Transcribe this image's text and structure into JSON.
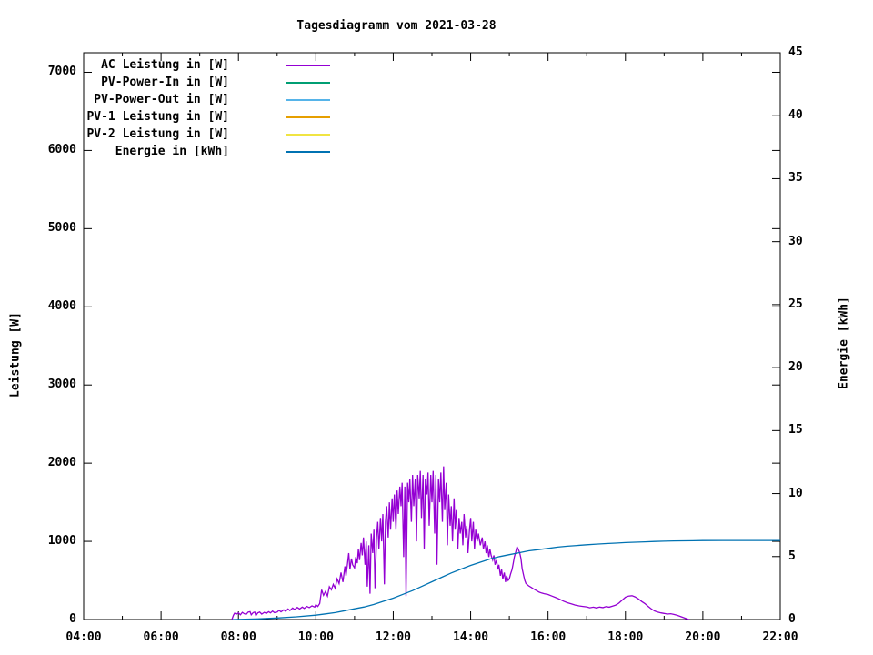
{
  "chart_data": {
    "type": "line",
    "title": "Tagesdiagramm vom 2021-03-28",
    "grid": false,
    "legend_position": "top-left-inside",
    "x_axis": {
      "tick_labels": [
        "04:00",
        "06:00",
        "08:00",
        "10:00",
        "12:00",
        "14:00",
        "16:00",
        "18:00",
        "20:00",
        "22:00"
      ],
      "major_tick_hours": [
        4,
        6,
        8,
        10,
        12,
        14,
        16,
        18,
        20,
        22
      ],
      "minor_tick_hours": [
        5,
        7,
        9,
        11,
        13,
        15,
        17,
        19,
        21
      ],
      "range_hours": [
        4,
        22
      ]
    },
    "y_left": {
      "label": "Leistung [W]",
      "tick_values": [
        0,
        1000,
        2000,
        3000,
        4000,
        5000,
        6000,
        7000
      ],
      "range": [
        0,
        7250
      ]
    },
    "y_right": {
      "label": "Energie [kWh]",
      "tick_values": [
        0,
        5,
        10,
        15,
        20,
        25,
        30,
        35,
        40,
        45
      ],
      "range": [
        0,
        45
      ]
    },
    "series": [
      {
        "name": "AC Leistung in [W]",
        "color": "#9400d3",
        "axis": "left",
        "visible": true,
        "points": [
          [
            7.83,
            0
          ],
          [
            7.87,
            55
          ],
          [
            7.9,
            80
          ],
          [
            7.95,
            70
          ],
          [
            8.0,
            85
          ],
          [
            8.05,
            60
          ],
          [
            8.1,
            92
          ],
          [
            8.15,
            75
          ],
          [
            8.2,
            65
          ],
          [
            8.25,
            95
          ],
          [
            8.3,
            100
          ],
          [
            8.33,
            60
          ],
          [
            8.38,
            88
          ],
          [
            8.42,
            95
          ],
          [
            8.45,
            50
          ],
          [
            8.5,
            85
          ],
          [
            8.55,
            95
          ],
          [
            8.6,
            70
          ],
          [
            8.67,
            92
          ],
          [
            8.72,
            78
          ],
          [
            8.78,
            100
          ],
          [
            8.83,
            85
          ],
          [
            8.88,
            108
          ],
          [
            8.93,
            88
          ],
          [
            9.0,
            95
          ],
          [
            9.05,
            118
          ],
          [
            9.1,
            98
          ],
          [
            9.17,
            125
          ],
          [
            9.22,
            105
          ],
          [
            9.28,
            135
          ],
          [
            9.33,
            115
          ],
          [
            9.4,
            148
          ],
          [
            9.45,
            128
          ],
          [
            9.52,
            155
          ],
          [
            9.58,
            135
          ],
          [
            9.65,
            160
          ],
          [
            9.7,
            142
          ],
          [
            9.77,
            168
          ],
          [
            9.83,
            152
          ],
          [
            9.9,
            175
          ],
          [
            9.97,
            160
          ],
          [
            10.0,
            190
          ],
          [
            10.05,
            168
          ],
          [
            10.1,
            205
          ],
          [
            10.15,
            380
          ],
          [
            10.2,
            310
          ],
          [
            10.25,
            360
          ],
          [
            10.3,
            300
          ],
          [
            10.35,
            420
          ],
          [
            10.4,
            380
          ],
          [
            10.45,
            450
          ],
          [
            10.5,
            400
          ],
          [
            10.55,
            520
          ],
          [
            10.6,
            460
          ],
          [
            10.65,
            600
          ],
          [
            10.7,
            480
          ],
          [
            10.75,
            680
          ],
          [
            10.78,
            560
          ],
          [
            10.82,
            720
          ],
          [
            10.85,
            850
          ],
          [
            10.88,
            640
          ],
          [
            10.92,
            780
          ],
          [
            10.95,
            700
          ],
          [
            11.0,
            660
          ],
          [
            11.03,
            800
          ],
          [
            11.07,
            720
          ],
          [
            11.1,
            900
          ],
          [
            11.13,
            760
          ],
          [
            11.17,
            980
          ],
          [
            11.2,
            820
          ],
          [
            11.23,
            1050
          ],
          [
            11.27,
            700
          ],
          [
            11.3,
            1000
          ],
          [
            11.33,
            420
          ],
          [
            11.37,
            950
          ],
          [
            11.4,
            330
          ],
          [
            11.43,
            1100
          ],
          [
            11.47,
            850
          ],
          [
            11.5,
            1150
          ],
          [
            11.53,
            400
          ],
          [
            11.57,
            1050
          ],
          [
            11.6,
            1250
          ],
          [
            11.63,
            900
          ],
          [
            11.67,
            1300
          ],
          [
            11.7,
            1000
          ],
          [
            11.73,
            1350
          ],
          [
            11.77,
            450
          ],
          [
            11.8,
            1250
          ],
          [
            11.83,
            1450
          ],
          [
            11.87,
            1050
          ],
          [
            11.9,
            1500
          ],
          [
            11.93,
            1150
          ],
          [
            11.97,
            1550
          ],
          [
            12.0,
            1250
          ],
          [
            12.03,
            1600
          ],
          [
            12.07,
            1150
          ],
          [
            12.1,
            1650
          ],
          [
            12.13,
            1350
          ],
          [
            12.17,
            1700
          ],
          [
            12.2,
            1450
          ],
          [
            12.23,
            1750
          ],
          [
            12.27,
            800
          ],
          [
            12.3,
            1700
          ],
          [
            12.33,
            300
          ],
          [
            12.37,
            1750
          ],
          [
            12.4,
            1500
          ],
          [
            12.43,
            1800
          ],
          [
            12.47,
            1250
          ],
          [
            12.5,
            1850
          ],
          [
            12.53,
            1450
          ],
          [
            12.57,
            1800
          ],
          [
            12.6,
            1000
          ],
          [
            12.63,
            1850
          ],
          [
            12.67,
            1550
          ],
          [
            12.7,
            1900
          ],
          [
            12.73,
            1300
          ],
          [
            12.77,
            1850
          ],
          [
            12.8,
            900
          ],
          [
            12.83,
            1800
          ],
          [
            12.87,
            1600
          ],
          [
            12.9,
            1880
          ],
          [
            12.93,
            1200
          ],
          [
            12.97,
            1850
          ],
          [
            13.0,
            1500
          ],
          [
            13.03,
            1900
          ],
          [
            13.07,
            1100
          ],
          [
            13.1,
            1850
          ],
          [
            13.13,
            700
          ],
          [
            13.17,
            1800
          ],
          [
            13.2,
            1500
          ],
          [
            13.23,
            1880
          ],
          [
            13.27,
            1250
          ],
          [
            13.3,
            1960
          ],
          [
            13.33,
            1400
          ],
          [
            13.37,
            1750
          ],
          [
            13.4,
            950
          ],
          [
            13.43,
            1600
          ],
          [
            13.47,
            1200
          ],
          [
            13.5,
            1450
          ],
          [
            13.53,
            1000
          ],
          [
            13.57,
            1550
          ],
          [
            13.6,
            1150
          ],
          [
            13.63,
            1400
          ],
          [
            13.67,
            900
          ],
          [
            13.7,
            1300
          ],
          [
            13.73,
            1100
          ],
          [
            13.77,
            1250
          ],
          [
            13.8,
            950
          ],
          [
            13.83,
            1350
          ],
          [
            13.87,
            1050
          ],
          [
            13.9,
            1200
          ],
          [
            13.93,
            850
          ],
          [
            13.97,
            1150
          ],
          [
            14.0,
            1300
          ],
          [
            14.03,
            1000
          ],
          [
            14.07,
            1250
          ],
          [
            14.1,
            900
          ],
          [
            14.13,
            1150
          ],
          [
            14.17,
            1000
          ],
          [
            14.2,
            1100
          ],
          [
            14.25,
            950
          ],
          [
            14.3,
            1050
          ],
          [
            14.33,
            900
          ],
          [
            14.37,
            1000
          ],
          [
            14.4,
            850
          ],
          [
            14.43,
            950
          ],
          [
            14.47,
            800
          ],
          [
            14.5,
            900
          ],
          [
            14.53,
            820
          ],
          [
            14.57,
            760
          ],
          [
            14.6,
            820
          ],
          [
            14.63,
            700
          ],
          [
            14.67,
            760
          ],
          [
            14.7,
            640
          ],
          [
            14.73,
            700
          ],
          [
            14.77,
            560
          ],
          [
            14.8,
            640
          ],
          [
            14.83,
            520
          ],
          [
            14.87,
            600
          ],
          [
            14.9,
            480
          ],
          [
            14.93,
            560
          ],
          [
            14.97,
            500
          ],
          [
            15.0,
            520
          ],
          [
            15.03,
            580
          ],
          [
            15.07,
            640
          ],
          [
            15.1,
            720
          ],
          [
            15.13,
            800
          ],
          [
            15.17,
            870
          ],
          [
            15.2,
            930
          ],
          [
            15.23,
            900
          ],
          [
            15.27,
            850
          ],
          [
            15.3,
            780
          ],
          [
            15.33,
            650
          ],
          [
            15.37,
            560
          ],
          [
            15.4,
            500
          ],
          [
            15.43,
            460
          ],
          [
            15.5,
            430
          ],
          [
            15.57,
            410
          ],
          [
            15.63,
            390
          ],
          [
            15.7,
            370
          ],
          [
            15.77,
            350
          ],
          [
            15.83,
            340
          ],
          [
            15.9,
            330
          ],
          [
            16.0,
            320
          ],
          [
            16.1,
            300
          ],
          [
            16.2,
            280
          ],
          [
            16.3,
            260
          ],
          [
            16.4,
            235
          ],
          [
            16.5,
            215
          ],
          [
            16.6,
            200
          ],
          [
            16.7,
            185
          ],
          [
            16.8,
            175
          ],
          [
            16.9,
            168
          ],
          [
            17.0,
            162
          ],
          [
            17.08,
            150
          ],
          [
            17.17,
            158
          ],
          [
            17.25,
            148
          ],
          [
            17.33,
            160
          ],
          [
            17.42,
            152
          ],
          [
            17.5,
            165
          ],
          [
            17.58,
            158
          ],
          [
            17.67,
            172
          ],
          [
            17.75,
            185
          ],
          [
            17.83,
            210
          ],
          [
            17.92,
            250
          ],
          [
            18.0,
            285
          ],
          [
            18.08,
            300
          ],
          [
            18.17,
            305
          ],
          [
            18.25,
            290
          ],
          [
            18.33,
            265
          ],
          [
            18.42,
            230
          ],
          [
            18.5,
            205
          ],
          [
            18.58,
            170
          ],
          [
            18.67,
            135
          ],
          [
            18.75,
            110
          ],
          [
            18.83,
            95
          ],
          [
            18.92,
            85
          ],
          [
            19.0,
            78
          ],
          [
            19.08,
            70
          ],
          [
            19.17,
            75
          ],
          [
            19.25,
            65
          ],
          [
            19.33,
            55
          ],
          [
            19.42,
            40
          ],
          [
            19.5,
            25
          ],
          [
            19.58,
            10
          ],
          [
            19.65,
            0
          ]
        ]
      },
      {
        "name": "PV-Power-In in [W]",
        "color": "#009e73",
        "axis": "left",
        "visible": false,
        "points": []
      },
      {
        "name": "PV-Power-Out in [W]",
        "color": "#56b4e9",
        "axis": "left",
        "visible": false,
        "points": []
      },
      {
        "name": "PV-1 Leistung in [W]",
        "color": "#e69f00",
        "axis": "left",
        "visible": false,
        "points": []
      },
      {
        "name": "PV-2 Leistung in [W]",
        "color": "#f0e442",
        "axis": "left",
        "visible": false,
        "points": []
      },
      {
        "name": "Energie in [kWh]",
        "color": "#0072b2",
        "axis": "right",
        "visible": true,
        "points": [
          [
            7.85,
            0
          ],
          [
            8.5,
            0.05
          ],
          [
            9.0,
            0.12
          ],
          [
            9.5,
            0.22
          ],
          [
            10.0,
            0.35
          ],
          [
            10.25,
            0.45
          ],
          [
            10.5,
            0.55
          ],
          [
            10.75,
            0.7
          ],
          [
            11.0,
            0.85
          ],
          [
            11.25,
            1.0
          ],
          [
            11.5,
            1.2
          ],
          [
            11.75,
            1.45
          ],
          [
            12.0,
            1.7
          ],
          [
            12.25,
            2.0
          ],
          [
            12.5,
            2.3
          ],
          [
            12.75,
            2.65
          ],
          [
            13.0,
            3.0
          ],
          [
            13.25,
            3.35
          ],
          [
            13.5,
            3.7
          ],
          [
            13.75,
            4.0
          ],
          [
            14.0,
            4.3
          ],
          [
            14.25,
            4.55
          ],
          [
            14.5,
            4.8
          ],
          [
            14.75,
            5.0
          ],
          [
            15.0,
            5.15
          ],
          [
            15.25,
            5.3
          ],
          [
            15.5,
            5.45
          ],
          [
            15.75,
            5.55
          ],
          [
            16.0,
            5.65
          ],
          [
            16.25,
            5.75
          ],
          [
            16.5,
            5.82
          ],
          [
            16.75,
            5.88
          ],
          [
            17.0,
            5.94
          ],
          [
            17.25,
            5.99
          ],
          [
            17.5,
            6.03
          ],
          [
            17.75,
            6.07
          ],
          [
            18.0,
            6.11
          ],
          [
            18.25,
            6.14
          ],
          [
            18.5,
            6.17
          ],
          [
            18.75,
            6.2
          ],
          [
            19.0,
            6.22
          ],
          [
            19.25,
            6.24
          ],
          [
            19.5,
            6.25
          ],
          [
            20.0,
            6.27
          ],
          [
            20.5,
            6.28
          ],
          [
            21.0,
            6.28
          ],
          [
            21.5,
            6.28
          ],
          [
            22.0,
            6.28
          ]
        ]
      }
    ]
  }
}
